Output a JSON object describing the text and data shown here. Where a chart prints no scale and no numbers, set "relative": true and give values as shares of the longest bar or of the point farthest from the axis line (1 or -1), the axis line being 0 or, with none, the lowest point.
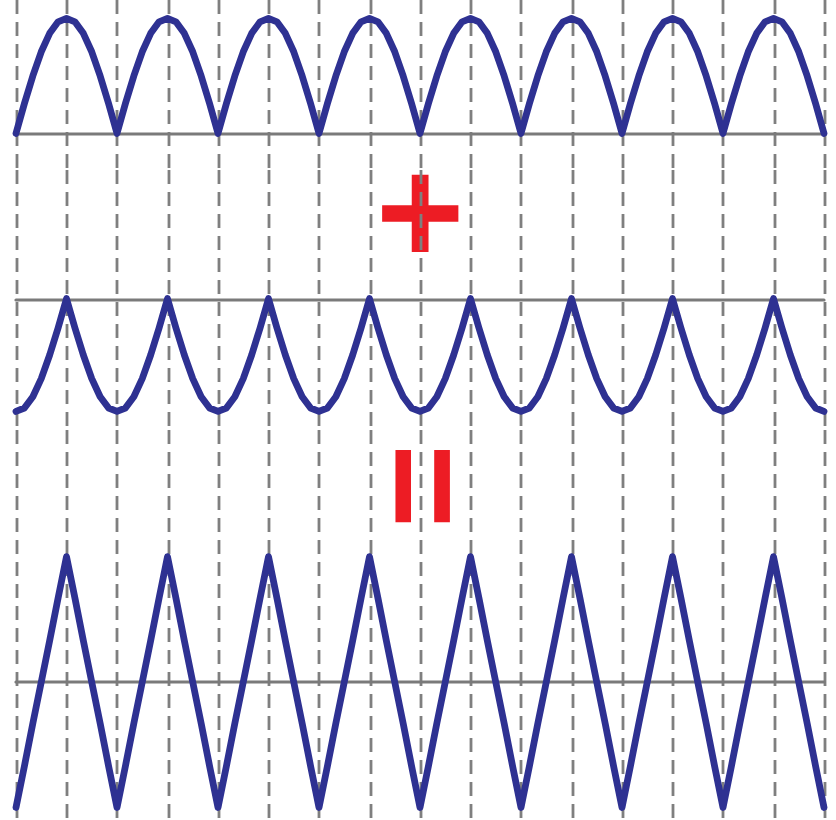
{
  "chart_data": [
    {
      "type": "line",
      "relative": true,
      "grid": "x",
      "categories": [
        null,
        null,
        null,
        null,
        null,
        null,
        null,
        null,
        null,
        null,
        null,
        null,
        null,
        null,
        null,
        null,
        null,
        null,
        null,
        null,
        null,
        null,
        null,
        null,
        null,
        null,
        null,
        null,
        null,
        null,
        null,
        null,
        null,
        null,
        null,
        null,
        null,
        null,
        null,
        null,
        null,
        null,
        null,
        null,
        null,
        null,
        null,
        null,
        null,
        null,
        null,
        null,
        null,
        null,
        null,
        null,
        null,
        null,
        null,
        null,
        null,
        null,
        null,
        null,
        null,
        null,
        null,
        null,
        null,
        null,
        null,
        null,
        null,
        null,
        null,
        null,
        null,
        null,
        null,
        null,
        null,
        null,
        null,
        null,
        null,
        null,
        null,
        null,
        null,
        null,
        null,
        null,
        null,
        null,
        null,
        null,
        null
      ],
      "series": [
        {
          "color": "#2e3192",
          "values": [
            0,
            0.26,
            0.5,
            0.71,
            0.87,
            0.97,
            1,
            0.97,
            0.87,
            0.71,
            0.5,
            0.26,
            0,
            0.26,
            0.5,
            0.71,
            0.87,
            0.97,
            1,
            0.97,
            0.87,
            0.71,
            0.5,
            0.26,
            0,
            0.26,
            0.5,
            0.71,
            0.87,
            0.97,
            1,
            0.97,
            0.87,
            0.71,
            0.5,
            0.26,
            0,
            0.26,
            0.5,
            0.71,
            0.87,
            0.97,
            1,
            0.97,
            0.87,
            0.71,
            0.5,
            0.26,
            0,
            0.26,
            0.5,
            0.71,
            0.87,
            0.97,
            1,
            0.97,
            0.87,
            0.71,
            0.5,
            0.26,
            0,
            0.26,
            0.5,
            0.71,
            0.87,
            0.97,
            1,
            0.97,
            0.87,
            0.71,
            0.5,
            0.26,
            0,
            0.26,
            0.5,
            0.71,
            0.87,
            0.97,
            1,
            0.97,
            0.87,
            0.71,
            0.5,
            0.26,
            0,
            0.26,
            0.5,
            0.71,
            0.87,
            0.97,
            1,
            0.97,
            0.87,
            0.71,
            0.5,
            0.26,
            0
          ]
        }
      ]
    },
    {
      "type": "line",
      "relative": true,
      "grid": "x",
      "annotations": [
        "+"
      ],
      "categories": [
        null,
        null,
        null,
        null,
        null,
        null,
        null,
        null,
        null,
        null,
        null,
        null,
        null,
        null,
        null,
        null,
        null,
        null,
        null,
        null,
        null,
        null,
        null,
        null,
        null,
        null,
        null,
        null,
        null,
        null,
        null,
        null,
        null,
        null,
        null,
        null,
        null,
        null,
        null,
        null,
        null,
        null,
        null,
        null,
        null,
        null,
        null,
        null,
        null,
        null,
        null,
        null,
        null,
        null,
        null,
        null,
        null,
        null,
        null,
        null,
        null,
        null,
        null,
        null,
        null,
        null,
        null,
        null,
        null,
        null,
        null,
        null,
        null,
        null,
        null,
        null,
        null,
        null,
        null,
        null,
        null,
        null,
        null,
        null,
        null,
        null,
        null,
        null,
        null,
        null,
        null,
        null,
        null,
        null,
        null,
        null,
        null
      ],
      "series": [
        {
          "color": "#2e3192",
          "values": [
            -1,
            -0.97,
            -0.87,
            -0.71,
            -0.5,
            -0.26,
            0,
            -0.26,
            -0.5,
            -0.71,
            -0.87,
            -0.97,
            -1,
            -0.97,
            -0.87,
            -0.71,
            -0.5,
            -0.26,
            0,
            -0.26,
            -0.5,
            -0.71,
            -0.87,
            -0.97,
            -1,
            -0.97,
            -0.87,
            -0.71,
            -0.5,
            -0.26,
            0,
            -0.26,
            -0.5,
            -0.71,
            -0.87,
            -0.97,
            -1,
            -0.97,
            -0.87,
            -0.71,
            -0.5,
            -0.26,
            0,
            -0.26,
            -0.5,
            -0.71,
            -0.87,
            -0.97,
            -1,
            -0.97,
            -0.87,
            -0.71,
            -0.5,
            -0.26,
            0,
            -0.26,
            -0.5,
            -0.71,
            -0.87,
            -0.97,
            -1,
            -0.97,
            -0.87,
            -0.71,
            -0.5,
            -0.26,
            0,
            -0.26,
            -0.5,
            -0.71,
            -0.87,
            -0.97,
            -1,
            -0.97,
            -0.87,
            -0.71,
            -0.5,
            -0.26,
            0,
            -0.26,
            -0.5,
            -0.71,
            -0.87,
            -0.97,
            -1,
            -0.97,
            -0.87,
            -0.71,
            -0.5,
            -0.26,
            0,
            -0.26,
            -0.5,
            -0.71,
            -0.87,
            -0.97,
            -1
          ]
        }
      ]
    },
    {
      "type": "line",
      "relative": true,
      "grid": "x",
      "annotations": [
        "="
      ],
      "categories": [
        null,
        null,
        null,
        null,
        null,
        null,
        null,
        null,
        null,
        null,
        null,
        null,
        null,
        null,
        null,
        null,
        null,
        null,
        null,
        null,
        null,
        null,
        null,
        null,
        null,
        null,
        null,
        null,
        null,
        null,
        null,
        null,
        null,
        null,
        null,
        null,
        null,
        null,
        null,
        null,
        null,
        null,
        null,
        null,
        null,
        null,
        null,
        null,
        null,
        null,
        null,
        null,
        null,
        null,
        null,
        null,
        null,
        null,
        null,
        null,
        null,
        null,
        null,
        null,
        null,
        null,
        null,
        null,
        null,
        null,
        null,
        null,
        null,
        null,
        null,
        null,
        null,
        null,
        null,
        null,
        null,
        null,
        null,
        null,
        null,
        null,
        null,
        null,
        null,
        null,
        null,
        null,
        null,
        null,
        null,
        null,
        null
      ],
      "series": [
        {
          "color": "#2e3192",
          "values": [
            -1,
            -0.67,
            -0.33,
            0,
            0.33,
            0.67,
            1,
            0.67,
            0.33,
            0,
            -0.33,
            -0.67,
            -1,
            -0.67,
            -0.33,
            0,
            0.33,
            0.67,
            1,
            0.67,
            0.33,
            0,
            -0.33,
            -0.67,
            -1,
            -0.67,
            -0.33,
            0,
            0.33,
            0.67,
            1,
            0.67,
            0.33,
            0,
            -0.33,
            -0.67,
            -1,
            -0.67,
            -0.33,
            0,
            0.33,
            0.67,
            1,
            0.67,
            0.33,
            0,
            -0.33,
            -0.67,
            -1,
            -0.67,
            -0.33,
            0,
            0.33,
            0.67,
            1,
            0.67,
            0.33,
            0,
            -0.33,
            -0.67,
            -1,
            -0.67,
            -0.33,
            0,
            0.33,
            0.67,
            1,
            0.67,
            0.33,
            0,
            -0.33,
            -0.67,
            -1,
            -0.67,
            -0.33,
            0,
            0.33,
            0.67,
            1,
            0.67,
            0.33,
            0,
            -0.33,
            -0.67,
            -1,
            -0.67,
            -0.33,
            0,
            0.33,
            0.67,
            1,
            0.67,
            0.33,
            0,
            -0.33,
            -0.67,
            -1
          ]
        }
      ]
    }
  ]
}
